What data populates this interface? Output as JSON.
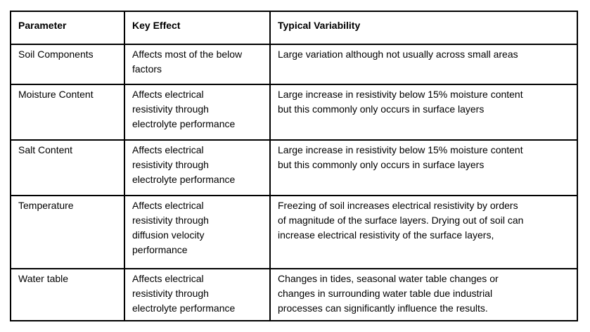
{
  "colors": {
    "border": "#000000",
    "text": "#000000",
    "background": "#ffffff"
  },
  "table": {
    "headers": [
      "Parameter",
      "Key Effect",
      "Typical Variability"
    ],
    "rows": [
      {
        "parameter": "Soil Components",
        "key_effect": "Affects most of the below\nfactors",
        "typical_variability": "Large variation although not usually across small areas"
      },
      {
        "parameter": "Moisture Content",
        "key_effect": "Affects electrical\nresistivity through\nelectrolyte performance",
        "typical_variability": "Large increase in resistivity below 15% moisture content\nbut this commonly only occurs in surface layers"
      },
      {
        "parameter": "Salt Content",
        "key_effect": "Affects electrical\nresistivity through\nelectrolyte performance",
        "typical_variability": "Large increase in resistivity below 15% moisture content\nbut this commonly only occurs in surface layers"
      },
      {
        "parameter": "Temperature",
        "key_effect": "Affects electrical\nresistivity through\ndiffusion velocity\nperformance",
        "typical_variability": "Freezing of soil increases electrical resistivity by orders\nof magnitude of the surface layers. Drying out of soil can\nincrease electrical resistivity of the surface layers,"
      },
      {
        "parameter": "Water table",
        "key_effect": "Affects electrical\nresistivity through\nelectrolyte performance",
        "typical_variability": "Changes in tides, seasonal water table changes or\nchanges in surrounding water table due industrial\nprocesses can significantly influence the results."
      }
    ]
  }
}
